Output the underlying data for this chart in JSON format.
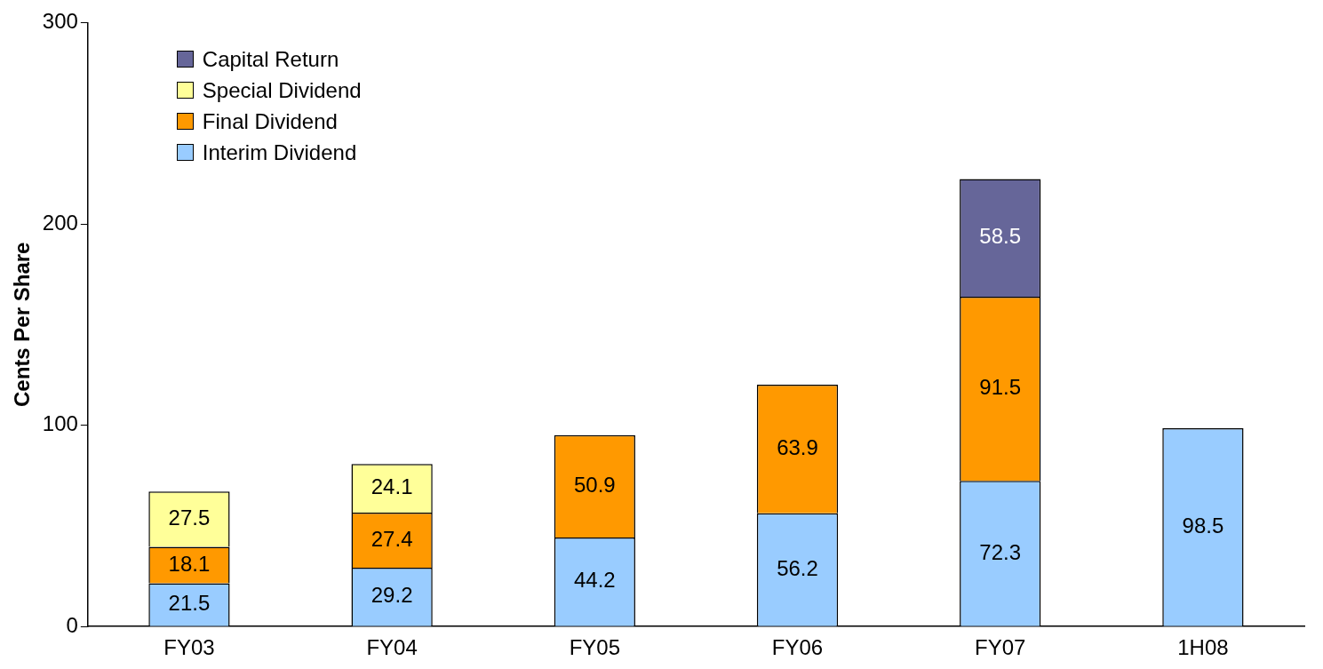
{
  "chart_data": {
    "type": "bar",
    "stacked": true,
    "ylabel": "Cents Per Share",
    "categories": [
      "FY03",
      "FY04",
      "FY05",
      "FY06",
      "FY07",
      "1H08"
    ],
    "series": [
      {
        "name": "Interim Dividend",
        "color": "#99ccff",
        "values": [
          21.5,
          29.2,
          44.2,
          56.2,
          72.3,
          98.5
        ]
      },
      {
        "name": "Final Dividend",
        "color": "#ff9900",
        "values": [
          18.1,
          27.4,
          50.9,
          63.9,
          91.5,
          null
        ]
      },
      {
        "name": "Special Dividend",
        "color": "#ffff99",
        "values": [
          27.5,
          24.1,
          null,
          null,
          null,
          null
        ]
      },
      {
        "name": "Capital Return",
        "color": "#666699",
        "values": [
          null,
          null,
          null,
          null,
          58.5,
          null
        ]
      }
    ],
    "ylim": [
      0,
      300
    ],
    "yticks": [
      0,
      100,
      200,
      300
    ],
    "grid": false,
    "legend": "top left",
    "data_labels": true
  }
}
